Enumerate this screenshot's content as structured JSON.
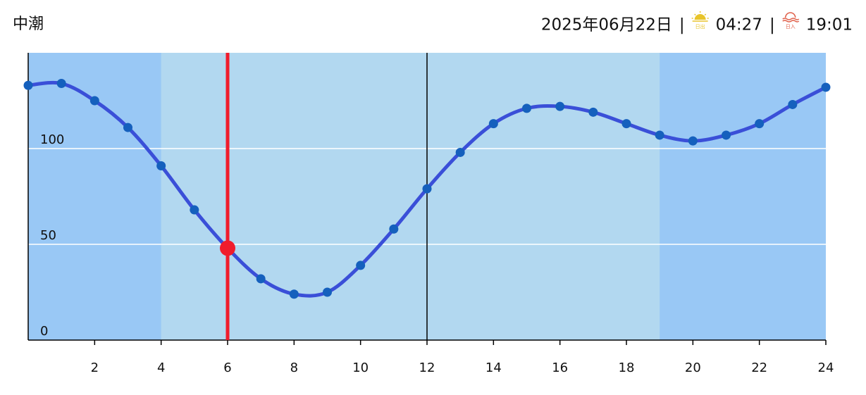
{
  "chart_data": {
    "type": "line",
    "title": "中潮",
    "date": "2025年06月22日",
    "separator": "|",
    "sunrise_label": "日出",
    "sunrise": "04:27",
    "sunset_label": "日入",
    "sunset": "19:01",
    "x": [
      0,
      1,
      2,
      3,
      4,
      5,
      6,
      7,
      8,
      9,
      10,
      11,
      12,
      13,
      14,
      15,
      16,
      17,
      18,
      19,
      20,
      21,
      22,
      23,
      24
    ],
    "series": [
      {
        "color": "#3a4fd8",
        "values": [
          133,
          134,
          125,
          111,
          91,
          68,
          48,
          32,
          24,
          25,
          39,
          58,
          79,
          98,
          113,
          121,
          122,
          119,
          113,
          107,
          104,
          107,
          113,
          123,
          132
        ]
      }
    ],
    "point_color": "#1560bd",
    "current": {
      "x": 6,
      "value": 48,
      "color": "#f01c2c"
    },
    "noon": 12,
    "night_bands": [
      [
        0,
        4
      ],
      [
        19,
        24
      ]
    ],
    "night_color": "#99c8f5",
    "day_color": "#b2d8f0",
    "xlim": [
      0,
      24
    ],
    "ylim": [
      0,
      150
    ],
    "xticks": [
      2,
      4,
      6,
      8,
      10,
      12,
      14,
      16,
      18,
      20,
      22,
      24
    ],
    "yticks": [
      0,
      50,
      100
    ],
    "grid": true
  }
}
